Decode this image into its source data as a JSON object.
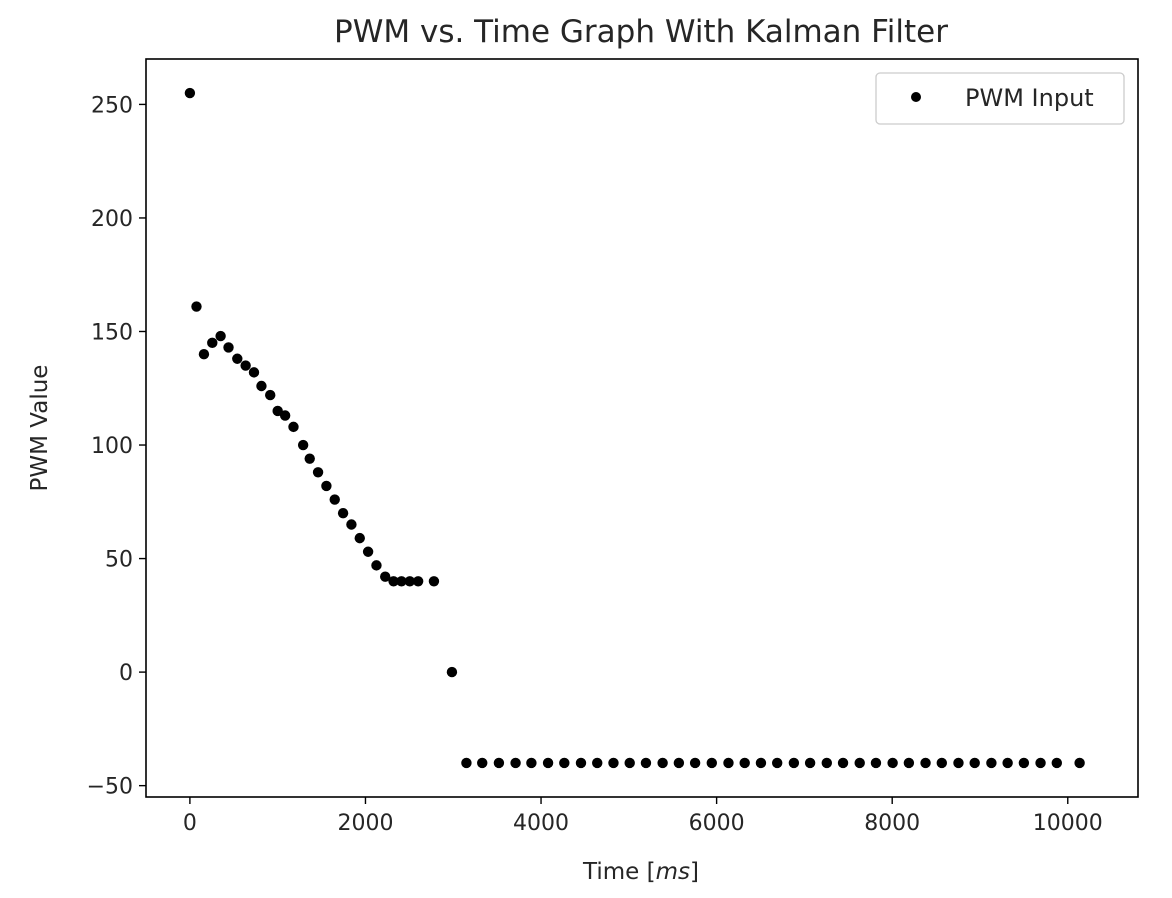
{
  "chart_data": {
    "type": "scatter",
    "title": "PWM vs. Time Graph With Kalman Filter",
    "xlabel_prefix": "Time [",
    "xlabel_unit": "ms",
    "xlabel_suffix": "]",
    "ylabel": "PWM Value",
    "xlim": [
      -500,
      10800
    ],
    "ylim": [
      -55,
      270
    ],
    "x_ticks": [
      0,
      2000,
      4000,
      6000,
      8000,
      10000
    ],
    "y_ticks": [
      -50,
      0,
      50,
      100,
      150,
      200,
      250
    ],
    "grid": false,
    "legend_position": "top-right",
    "series": [
      {
        "name": "PWM Input",
        "color": "#000000",
        "marker": "circle",
        "points": [
          [
            0,
            255
          ],
          [
            75,
            161
          ],
          [
            160,
            140
          ],
          [
            255,
            145
          ],
          [
            350,
            148
          ],
          [
            440,
            143
          ],
          [
            540,
            138
          ],
          [
            635,
            135
          ],
          [
            730,
            132
          ],
          [
            815,
            126
          ],
          [
            915,
            122
          ],
          [
            1000,
            115
          ],
          [
            1085,
            113
          ],
          [
            1180,
            108
          ],
          [
            1290,
            100
          ],
          [
            1365,
            94
          ],
          [
            1460,
            88
          ],
          [
            1555,
            82
          ],
          [
            1650,
            76
          ],
          [
            1745,
            70
          ],
          [
            1840,
            65
          ],
          [
            1935,
            59
          ],
          [
            2030,
            53
          ],
          [
            2125,
            47
          ],
          [
            2225,
            42
          ],
          [
            2320,
            40
          ],
          [
            2410,
            40
          ],
          [
            2505,
            40
          ],
          [
            2600,
            40
          ],
          [
            2780,
            40
          ],
          [
            2985,
            0
          ],
          [
            3150,
            -40
          ],
          [
            3330,
            -40
          ],
          [
            3520,
            -40
          ],
          [
            3710,
            -40
          ],
          [
            3890,
            -40
          ],
          [
            4080,
            -40
          ],
          [
            4265,
            -40
          ],
          [
            4455,
            -40
          ],
          [
            4640,
            -40
          ],
          [
            4825,
            -40
          ],
          [
            5010,
            -40
          ],
          [
            5195,
            -40
          ],
          [
            5385,
            -40
          ],
          [
            5570,
            -40
          ],
          [
            5755,
            -40
          ],
          [
            5945,
            -40
          ],
          [
            6135,
            -40
          ],
          [
            6320,
            -40
          ],
          [
            6505,
            -40
          ],
          [
            6690,
            -40
          ],
          [
            6880,
            -40
          ],
          [
            7065,
            -40
          ],
          [
            7255,
            -40
          ],
          [
            7440,
            -40
          ],
          [
            7630,
            -40
          ],
          [
            7815,
            -40
          ],
          [
            8005,
            -40
          ],
          [
            8190,
            -40
          ],
          [
            8380,
            -40
          ],
          [
            8565,
            -40
          ],
          [
            8755,
            -40
          ],
          [
            8940,
            -40
          ],
          [
            9130,
            -40
          ],
          [
            9315,
            -40
          ],
          [
            9500,
            -40
          ],
          [
            9690,
            -40
          ],
          [
            9875,
            -40
          ],
          [
            10135,
            -40
          ]
        ]
      }
    ]
  }
}
